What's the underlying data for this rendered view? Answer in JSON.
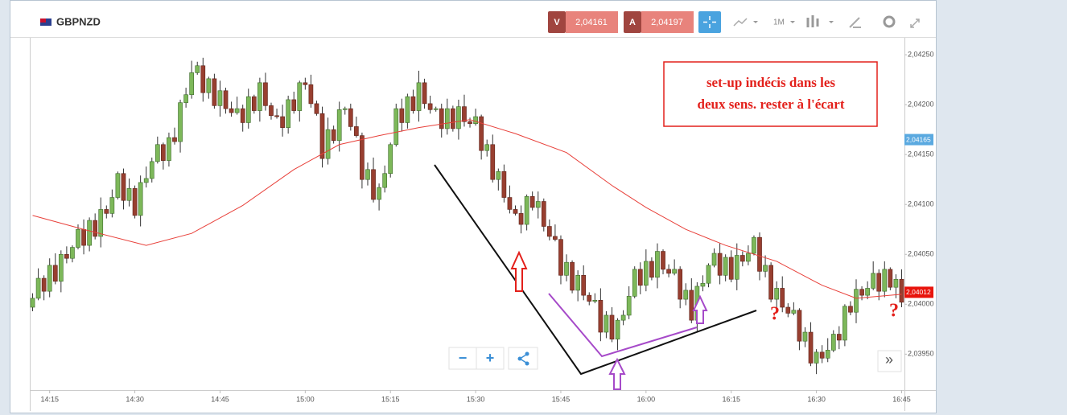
{
  "header": {
    "symbol": "GBPNZD",
    "bid_label": "V",
    "bid": "2,04161",
    "ask_label": "A",
    "ask": "2,04197",
    "timeframe": "1M"
  },
  "controls": {
    "zoom_out": "−",
    "zoom_in": "+",
    "scroll": "»"
  },
  "chart_data": {
    "type": "candlestick",
    "x": [
      852,
      853,
      854,
      855,
      856,
      857,
      858,
      859,
      860,
      861,
      862,
      863,
      864,
      865,
      866,
      867,
      868,
      869,
      870,
      871,
      872,
      873,
      874,
      875,
      876,
      877,
      878,
      879,
      880,
      881,
      882,
      883,
      884,
      885,
      886,
      887,
      888,
      889,
      890,
      891,
      892,
      893,
      894,
      895,
      896,
      897,
      898,
      899,
      900,
      901,
      902,
      903,
      904,
      905,
      906,
      907,
      908,
      909,
      910,
      911,
      912,
      913,
      914,
      915,
      916,
      917,
      918,
      919,
      920,
      921,
      922,
      923,
      924,
      925,
      926,
      927,
      928,
      929,
      930,
      931,
      932,
      933,
      934,
      935,
      936,
      937,
      938,
      939,
      940,
      941,
      942,
      943,
      944,
      945,
      946,
      947,
      948,
      949,
      950,
      951,
      952,
      953,
      954,
      955,
      956,
      957,
      958,
      959,
      960,
      961,
      962,
      963,
      964,
      965,
      966,
      967,
      968,
      969,
      970,
      971,
      972,
      973,
      974,
      975,
      976,
      977,
      978,
      979,
      980,
      981,
      982,
      983,
      984,
      985,
      986,
      987,
      988,
      989,
      990,
      991,
      992,
      993,
      994,
      995,
      996,
      997,
      998,
      999,
      1000,
      1001,
      1002,
      1003,
      1004,
      1005
    ],
    "open": [
      2.03997,
      2.04006,
      2.04026,
      2.04013,
      2.04039,
      2.04023,
      2.0405,
      2.04046,
      2.04057,
      2.04075,
      2.04059,
      2.04084,
      2.04068,
      2.04095,
      2.04091,
      2.04107,
      2.04131,
      2.04104,
      2.04116,
      2.04089,
      2.04122,
      2.04126,
      2.04143,
      2.0416,
      2.04144,
      2.04167,
      2.04163,
      2.04202,
      2.0421,
      2.04232,
      2.04239,
      2.04212,
      2.04226,
      2.04199,
      2.04214,
      2.04196,
      2.04192,
      2.04196,
      2.04182,
      2.04208,
      2.04194,
      2.04222,
      2.04199,
      2.04189,
      2.04188,
      2.04177,
      2.04205,
      2.04194,
      2.04222,
      2.0422,
      2.04201,
      2.04191,
      2.04146,
      2.04175,
      2.04164,
      2.04195,
      2.04196,
      2.04178,
      2.04169,
      2.04125,
      2.04135,
      2.04105,
      2.04117,
      2.04131,
      2.0416,
      2.04196,
      2.04182,
      2.04208,
      2.04194,
      2.04222,
      2.04201,
      2.04195,
      2.04196,
      2.04176,
      2.04196,
      2.04176,
      2.04198,
      2.04183,
      2.04181,
      2.04188,
      2.04154,
      2.0416,
      2.04125,
      2.04133,
      2.04107,
      2.04095,
      2.04091,
      2.0408,
      2.04108,
      2.04097,
      2.04103,
      2.04078,
      2.04068,
      2.04065,
      2.04029,
      2.04042,
      2.04014,
      2.04029,
      2.04009,
      2.04003,
      2.04004,
      2.03972,
      2.03989,
      2.03965,
      2.03984,
      2.03989,
      2.04008,
      2.04035,
      2.04019,
      2.04043,
      2.04027,
      2.04053,
      2.04035,
      2.04031,
      2.04035,
      2.04005,
      2.04014,
      2.03984,
      2.04018,
      2.04021,
      2.04039,
      2.04051,
      2.04029,
      2.04047,
      2.04025,
      2.04049,
      2.04043,
      2.04051,
      2.04067,
      2.04033,
      2.04039,
      2.04005,
      2.04016,
      2.03997,
      2.03991,
      2.03994,
      2.03963,
      2.03972,
      2.03941,
      2.03952,
      2.03946,
      2.03954,
      2.0397,
      2.03964,
      2.03998,
      2.03992,
      2.04015,
      2.04009,
      2.04016,
      2.04031,
      2.04013,
      2.04035,
      2.04017,
      2.04025
    ],
    "high": [
      2.04011,
      2.04036,
      2.04029,
      2.04046,
      2.04051,
      2.04054,
      2.04058,
      2.04059,
      2.0408,
      2.04085,
      2.04087,
      2.04091,
      2.04107,
      2.04099,
      2.04115,
      2.04133,
      2.04136,
      2.04126,
      2.04119,
      2.04129,
      2.04138,
      2.04147,
      2.04168,
      2.04162,
      2.04172,
      2.04177,
      2.04205,
      2.04217,
      2.04244,
      2.04243,
      2.04247,
      2.04228,
      2.04231,
      2.04224,
      2.04217,
      2.04203,
      2.04208,
      2.042,
      2.04216,
      2.0421,
      2.04227,
      2.04232,
      2.04202,
      2.04196,
      2.042,
      2.04209,
      2.04213,
      2.04224,
      2.04227,
      2.0423,
      2.04204,
      2.04198,
      2.04187,
      2.04179,
      2.04203,
      2.04198,
      2.04201,
      2.04188,
      2.04172,
      2.04142,
      2.04147,
      2.04121,
      2.04139,
      2.04162,
      2.04201,
      2.04206,
      2.04211,
      2.04215,
      2.04234,
      2.04226,
      2.04209,
      2.04198,
      2.04201,
      2.04206,
      2.04199,
      2.04205,
      2.0421,
      2.04187,
      2.04196,
      2.0419,
      2.04165,
      2.0417,
      2.04136,
      2.0414,
      2.04119,
      2.04099,
      2.04099,
      2.0411,
      2.04113,
      2.04113,
      2.04106,
      2.04085,
      2.0408,
      2.04069,
      2.0405,
      2.04044,
      2.04034,
      2.04039,
      2.04012,
      2.04011,
      2.04016,
      2.03993,
      2.03997,
      2.03986,
      2.03994,
      2.04018,
      2.04038,
      2.04042,
      2.04055,
      2.04047,
      2.04061,
      2.04055,
      2.0404,
      2.04045,
      2.04038,
      2.04021,
      2.04026,
      2.04022,
      2.04029,
      2.04041,
      2.04056,
      2.04061,
      2.0405,
      2.04054,
      2.04061,
      2.04053,
      2.04059,
      2.04069,
      2.04072,
      2.04049,
      2.04042,
      2.04023,
      2.04028,
      2.04001,
      2.04002,
      2.03996,
      2.03977,
      2.03982,
      2.03955,
      2.03959,
      2.03966,
      2.03974,
      2.03978,
      2.04,
      2.04003,
      2.04025,
      2.04018,
      2.04023,
      2.04043,
      2.04035,
      2.04043,
      2.04037,
      2.0403,
      2.04035
    ],
    "low": [
      2.03993,
      2.04004,
      2.04004,
      2.04007,
      2.0402,
      2.04012,
      2.04041,
      2.04042,
      2.04055,
      2.0405,
      2.04053,
      2.04065,
      2.04057,
      2.04086,
      2.04087,
      2.04105,
      2.04095,
      2.04098,
      2.04086,
      2.04078,
      2.04117,
      2.04122,
      2.04141,
      2.04135,
      2.04138,
      2.0416,
      2.04152,
      2.04197,
      2.04206,
      2.0423,
      2.04203,
      2.04206,
      2.04196,
      2.04188,
      2.04191,
      2.04188,
      2.0419,
      2.04173,
      2.04176,
      2.04191,
      2.04183,
      2.04194,
      2.04185,
      2.04186,
      2.04168,
      2.04171,
      2.04191,
      2.04183,
      2.04215,
      2.04197,
      2.04189,
      2.04137,
      2.0414,
      2.04161,
      2.04153,
      2.0419,
      2.04174,
      2.04167,
      2.04116,
      2.04119,
      2.04102,
      2.04094,
      2.04112,
      2.04127,
      2.04158,
      2.04173,
      2.04176,
      2.04191,
      2.04183,
      2.04196,
      2.04191,
      2.04193,
      2.04167,
      2.0417,
      2.04173,
      2.04165,
      2.04178,
      2.04177,
      2.04179,
      2.04145,
      2.04148,
      2.04122,
      2.04114,
      2.04102,
      2.04091,
      2.04089,
      2.04071,
      2.04074,
      2.04094,
      2.04086,
      2.04073,
      2.04064,
      2.04063,
      2.0402,
      2.04023,
      2.04011,
      2.04003,
      2.04004,
      2.03999,
      2.04001,
      2.03963,
      2.03966,
      2.03962,
      2.03954,
      2.03979,
      2.03985,
      2.04006,
      2.0401,
      2.04013,
      2.04024,
      2.04016,
      2.0403,
      2.04027,
      2.04029,
      2.03996,
      2.03999,
      2.03981,
      2.03973,
      2.04013,
      2.04017,
      2.04037,
      2.0402,
      2.04023,
      2.04022,
      2.04014,
      2.04038,
      2.04039,
      2.04049,
      2.04024,
      2.04027,
      2.04002,
      2.03994,
      2.03992,
      2.03987,
      2.03989,
      2.03954,
      2.03957,
      2.03938,
      2.0393,
      2.03941,
      2.03942,
      2.03952,
      2.03955,
      2.03958,
      2.03989,
      2.03981,
      2.04004,
      2.04005,
      2.04014,
      2.04004,
      2.04007,
      2.04014,
      2.04006,
      2.03997
    ],
    "close": [
      2.04006,
      2.04026,
      2.04013,
      2.04039,
      2.04023,
      2.0405,
      2.04046,
      2.04057,
      2.04075,
      2.04059,
      2.04084,
      2.04068,
      2.04095,
      2.04091,
      2.04107,
      2.04131,
      2.04104,
      2.04116,
      2.04089,
      2.04122,
      2.04126,
      2.04143,
      2.0416,
      2.04144,
      2.04167,
      2.04163,
      2.04202,
      2.0421,
      2.04232,
      2.04239,
      2.04212,
      2.04226,
      2.04199,
      2.04214,
      2.04196,
      2.04192,
      2.04196,
      2.04182,
      2.04208,
      2.04194,
      2.04222,
      2.04199,
      2.04189,
      2.04188,
      2.04177,
      2.04205,
      2.04194,
      2.04222,
      2.0422,
      2.04201,
      2.04191,
      2.04146,
      2.04175,
      2.04164,
      2.04195,
      2.04196,
      2.04178,
      2.04169,
      2.04125,
      2.04135,
      2.04105,
      2.04117,
      2.04131,
      2.0416,
      2.04196,
      2.04182,
      2.04208,
      2.04194,
      2.04222,
      2.04201,
      2.04195,
      2.04196,
      2.04176,
      2.04196,
      2.04176,
      2.04198,
      2.04183,
      2.04181,
      2.04188,
      2.04154,
      2.0416,
      2.04125,
      2.04133,
      2.04107,
      2.04095,
      2.04091,
      2.0408,
      2.04108,
      2.04097,
      2.04103,
      2.04078,
      2.04068,
      2.04065,
      2.04029,
      2.04042,
      2.04014,
      2.04029,
      2.04009,
      2.04003,
      2.04004,
      2.03972,
      2.03989,
      2.03965,
      2.03984,
      2.03989,
      2.04008,
      2.04035,
      2.04019,
      2.04043,
      2.04027,
      2.04053,
      2.04035,
      2.04031,
      2.04035,
      2.04005,
      2.04014,
      2.03984,
      2.04018,
      2.04021,
      2.04039,
      2.04051,
      2.04029,
      2.04047,
      2.04025,
      2.04049,
      2.04043,
      2.04051,
      2.04067,
      2.04033,
      2.04039,
      2.04005,
      2.04016,
      2.03997,
      2.03991,
      2.03994,
      2.03963,
      2.03972,
      2.03941,
      2.03952,
      2.03946,
      2.03954,
      2.0397,
      2.03964,
      2.03998,
      2.03992,
      2.04015,
      2.04009,
      2.04016,
      2.04031,
      2.04013,
      2.04035,
      2.04017,
      2.04025,
      2.04002
    ],
    "up_color": "#7db85a",
    "down_color": "#983f30",
    "moving_average": {
      "color": "#e8403a",
      "x": [
        852,
        861,
        872,
        880,
        889,
        898,
        906,
        913,
        920,
        929,
        937,
        946,
        954,
        960,
        967,
        974,
        983,
        991,
        997,
        1005
      ],
      "values": [
        2.04089,
        2.04075,
        2.04059,
        2.04071,
        2.04099,
        2.04135,
        2.0416,
        2.04169,
        2.04177,
        2.04185,
        2.04171,
        2.04152,
        2.04119,
        2.04097,
        2.04075,
        2.04059,
        2.04043,
        2.04019,
        2.04006,
        2.0401
      ]
    },
    "price_tags": [
      {
        "value": 2.04165,
        "label": "2,04165",
        "color": "#5aa9e0"
      },
      {
        "value": 2.04012,
        "label": "2,04012",
        "color": "#e8140c"
      }
    ],
    "xlim": [
      851.5,
      1005.5
    ],
    "ylim": [
      2.03914,
      2.04267
    ],
    "xticks": [
      {
        "value": 855,
        "label": "14:15"
      },
      {
        "value": 870,
        "label": "14:30"
      },
      {
        "value": 885,
        "label": "14:45"
      },
      {
        "value": 900,
        "label": "15:00"
      },
      {
        "value": 915,
        "label": "15:15"
      },
      {
        "value": 930,
        "label": "15:30"
      },
      {
        "value": 945,
        "label": "15:45"
      },
      {
        "value": 960,
        "label": "16:00"
      },
      {
        "value": 975,
        "label": "16:15"
      },
      {
        "value": 990,
        "label": "16:30"
      },
      {
        "value": 1005,
        "label": "16:45"
      }
    ],
    "yticks": [
      {
        "value": 2.0395,
        "label": "2,03950"
      },
      {
        "value": 2.04,
        "label": "2,04000"
      },
      {
        "value": 2.0405,
        "label": "2,04050"
      },
      {
        "value": 2.041,
        "label": "2,04100"
      },
      {
        "value": 2.0415,
        "label": "2,04150"
      },
      {
        "value": 2.042,
        "label": "2,04200"
      },
      {
        "value": 2.0425,
        "label": "2,04250"
      }
    ],
    "annotations": [
      "set-up indécis dans les",
      "deux sens. rester à l'écart",
      "?",
      "?"
    ]
  }
}
